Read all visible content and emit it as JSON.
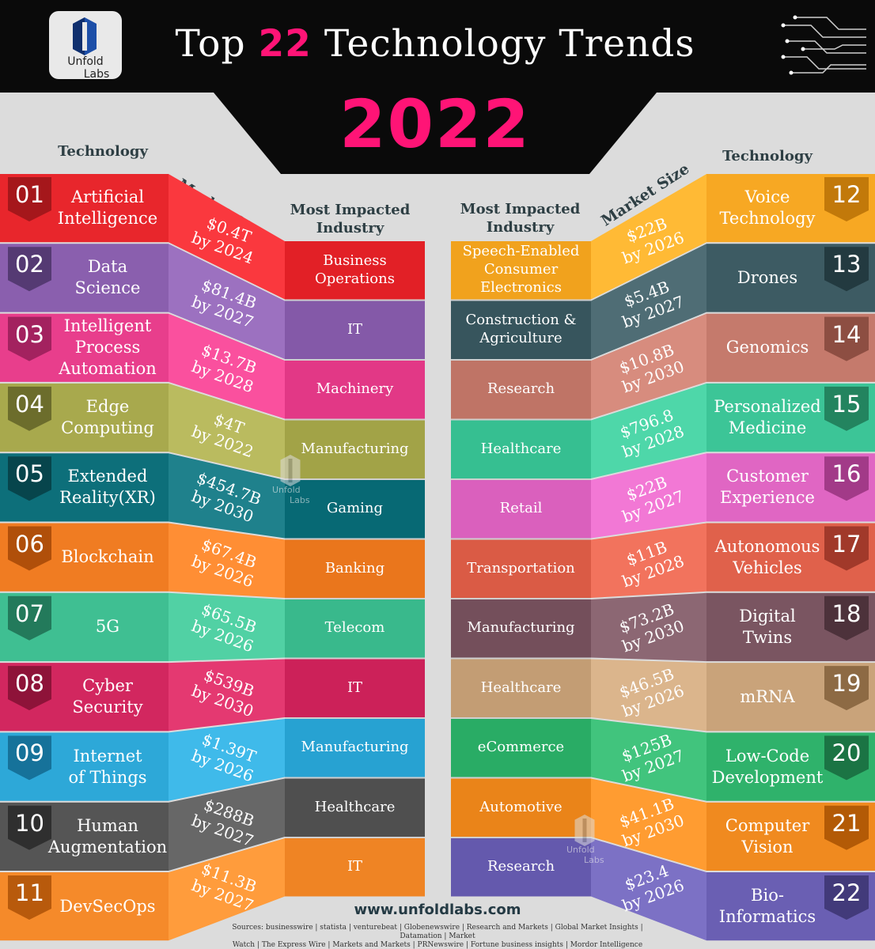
{
  "header": {
    "logo_line1": "Unfold",
    "logo_line2": "Labs",
    "title_pre": "Top ",
    "title_num": "22",
    "title_post": " Technology Trends",
    "year": "2022"
  },
  "columns": {
    "technology": "Technology",
    "market_size": "Market Size",
    "most_impacted_industry_1": "Most Impacted",
    "most_impacted_industry_2": "Industry"
  },
  "left": [
    {
      "num": "01",
      "tech": [
        "Artificial",
        "Intelligence"
      ],
      "mkt": [
        "$0.4T",
        "by 2024"
      ],
      "ind": [
        "Business",
        "Operations"
      ],
      "color": "#e8262c",
      "dark": "#a5171b"
    },
    {
      "num": "02",
      "tech": [
        "Data",
        "Science"
      ],
      "mkt": [
        "$81.4B",
        "by 2027"
      ],
      "ind": [
        "IT"
      ],
      "color": "#8a5fae",
      "dark": "#553a73"
    },
    {
      "num": "03",
      "tech": [
        "Intelligent",
        "Process",
        "Automation"
      ],
      "mkt": [
        "$13.7B",
        "by 2028"
      ],
      "ind": [
        "Machinery"
      ],
      "color": "#e83e8c",
      "dark": "#a3225f"
    },
    {
      "num": "04",
      "tech": [
        "Edge",
        "Computing"
      ],
      "mkt": [
        "$4T",
        "by 2022"
      ],
      "ind": [
        "Manufacturing"
      ],
      "color": "#a8a94d",
      "dark": "#6c6d2c"
    },
    {
      "num": "05",
      "tech": [
        "Extended",
        "Reality(XR)"
      ],
      "mkt": [
        "$454.7B",
        "by 2030"
      ],
      "ind": [
        "Gaming"
      ],
      "color": "#0d6f7a",
      "dark": "#07454c"
    },
    {
      "num": "06",
      "tech": [
        "Blockchain"
      ],
      "mkt": [
        "$67.4B",
        "by 2026"
      ],
      "ind": [
        "Banking"
      ],
      "color": "#f07c22",
      "dark": "#b04f0a"
    },
    {
      "num": "07",
      "tech": [
        "5G"
      ],
      "mkt": [
        "$65.5B",
        "by 2026"
      ],
      "ind": [
        "Telecom"
      ],
      "color": "#3fbf92",
      "dark": "#237a5b"
    },
    {
      "num": "08",
      "tech": [
        "Cyber",
        "Security"
      ],
      "mkt": [
        "$539B",
        "by 2030"
      ],
      "ind": [
        "IT"
      ],
      "color": "#d2275f",
      "dark": "#8e1339"
    },
    {
      "num": "09",
      "tech": [
        "Internet",
        "of Things"
      ],
      "mkt": [
        "$1.39T",
        "by 2026"
      ],
      "ind": [
        "Manufacturing"
      ],
      "color": "#2da8d8",
      "dark": "#16729a"
    },
    {
      "num": "10",
      "tech": [
        "Human",
        "Augmentation"
      ],
      "mkt": [
        "$288B",
        "by 2027"
      ],
      "ind": [
        "Healthcare"
      ],
      "color": "#555555",
      "dark": "#2f2f2f"
    },
    {
      "num": "11",
      "tech": [
        "DevSecOps"
      ],
      "mkt": [
        "$11.3B",
        "by 2027"
      ],
      "ind": [
        "IT"
      ],
      "color": "#f58a2a",
      "dark": "#b85a0c"
    }
  ],
  "right": [
    {
      "num": "12",
      "tech": [
        "Voice",
        "Technology"
      ],
      "mkt": [
        "$22B",
        "by 2026"
      ],
      "ind": [
        "Speech-Enabled",
        "Consumer",
        "Electronics"
      ],
      "color": "#f7a823",
      "dark": "#c2790a"
    },
    {
      "num": "13",
      "tech": [
        "Drones"
      ],
      "mkt": [
        "$5.4B",
        "by 2027"
      ],
      "ind": [
        "Construction &",
        "Agriculture"
      ],
      "color": "#3d5b63",
      "dark": "#233a40"
    },
    {
      "num": "14",
      "tech": [
        "Genomics"
      ],
      "mkt": [
        "$10.8B",
        "by 2030"
      ],
      "ind": [
        "Research"
      ],
      "color": "#c57a6c",
      "dark": "#8d4e42"
    },
    {
      "num": "15",
      "tech": [
        "Personalized",
        "Medicine"
      ],
      "mkt": [
        "$796.8",
        "by 2028"
      ],
      "ind": [
        "Healthcare"
      ],
      "color": "#3cc597",
      "dark": "#23845f"
    },
    {
      "num": "16",
      "tech": [
        "Customer",
        "Experience"
      ],
      "mkt": [
        "$22B",
        "by 2027"
      ],
      "ind": [
        "Retail"
      ],
      "color": "#e066c3",
      "dark": "#a23a88"
    },
    {
      "num": "17",
      "tech": [
        "Autonomous",
        "Vehicles"
      ],
      "mkt": [
        "$11B",
        "by 2028"
      ],
      "ind": [
        "Transportation"
      ],
      "color": "#e0614b",
      "dark": "#a1392a"
    },
    {
      "num": "18",
      "tech": [
        "Digital",
        "Twins"
      ],
      "mkt": [
        "$73.2B",
        "by 2030"
      ],
      "ind": [
        "Manufacturing"
      ],
      "color": "#7a5561",
      "dark": "#4d323b"
    },
    {
      "num": "19",
      "tech": [
        "mRNA"
      ],
      "mkt": [
        "$46.5B",
        "by 2026"
      ],
      "ind": [
        "Healthcare"
      ],
      "color": "#c9a37a",
      "dark": "#8d6a44"
    },
    {
      "num": "20",
      "tech": [
        "Low-Code",
        "Development"
      ],
      "mkt": [
        "$125B",
        "by 2027"
      ],
      "ind": [
        "eCommerce"
      ],
      "color": "#2fb26b",
      "dark": "#1b7444"
    },
    {
      "num": "21",
      "tech": [
        "Computer",
        "Vision"
      ],
      "mkt": [
        "$41.1B",
        "by 2030"
      ],
      "ind": [
        "Automotive"
      ],
      "color": "#f08a1f",
      "dark": "#b35a06"
    },
    {
      "num": "22",
      "tech": [
        "Bio-",
        "Informatics"
      ],
      "mkt": [
        "$23.4",
        "by 2026"
      ],
      "ind": [
        "Research"
      ],
      "color": "#6a5fb3",
      "dark": "#423a7a"
    }
  ],
  "footer": {
    "url": "www.unfoldlabs.com",
    "sources_1": "Sources: businesswire | statista | venturebeat | Globenewswire | Research and Markets | Global Market Insights | Datamation | Market",
    "sources_2": "Watch | The Express Wire | Markets and Markets | PRNewswire | Fortune business insights | Mordor Intelligence"
  },
  "watermark": {
    "line1": "Unfold",
    "line2": "Labs"
  }
}
